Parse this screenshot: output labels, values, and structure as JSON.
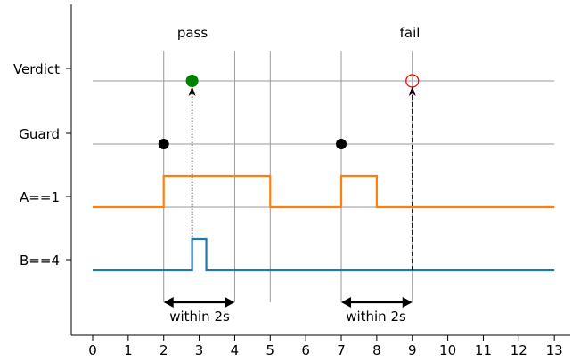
{
  "chart_data": {
    "type": "timing-diagram",
    "x_ticks": [
      "0",
      "1",
      "2",
      "3",
      "4",
      "5",
      "6",
      "7",
      "8",
      "9",
      "10",
      "11",
      "12",
      "13"
    ],
    "x_range": [
      -0.6,
      13.3
    ],
    "y_labels": [
      "Verdict",
      "Guard",
      "A==1",
      "B==4"
    ],
    "annotations": {
      "pass_label": "pass",
      "fail_label": "fail",
      "within_label_1": "within 2s",
      "within_label_2": "within 2s"
    },
    "vertical_lines_x": [
      2,
      4,
      5,
      7,
      9
    ],
    "signal_A": {
      "name": "A==1",
      "color": "#ff7f0e",
      "high_intervals": [
        [
          2,
          5
        ],
        [
          7,
          8
        ]
      ]
    },
    "signal_B": {
      "name": "B==4",
      "color": "#1f77b4",
      "high_intervals": [
        [
          2.8,
          3.2
        ]
      ]
    },
    "guard_events_x": [
      2,
      7
    ],
    "verdicts": [
      {
        "x": 2.8,
        "result": "pass",
        "color": "#008000"
      },
      {
        "x": 9,
        "result": "fail",
        "color": "#ff0000"
      }
    ],
    "arrows": [
      {
        "x": 2.8,
        "from": "B==4",
        "to": "Verdict",
        "style": "dotted"
      },
      {
        "x": 9,
        "from": "bottom",
        "to": "Verdict",
        "style": "dashed"
      }
    ],
    "within_spans": [
      [
        2,
        4
      ],
      [
        7,
        9
      ]
    ]
  }
}
